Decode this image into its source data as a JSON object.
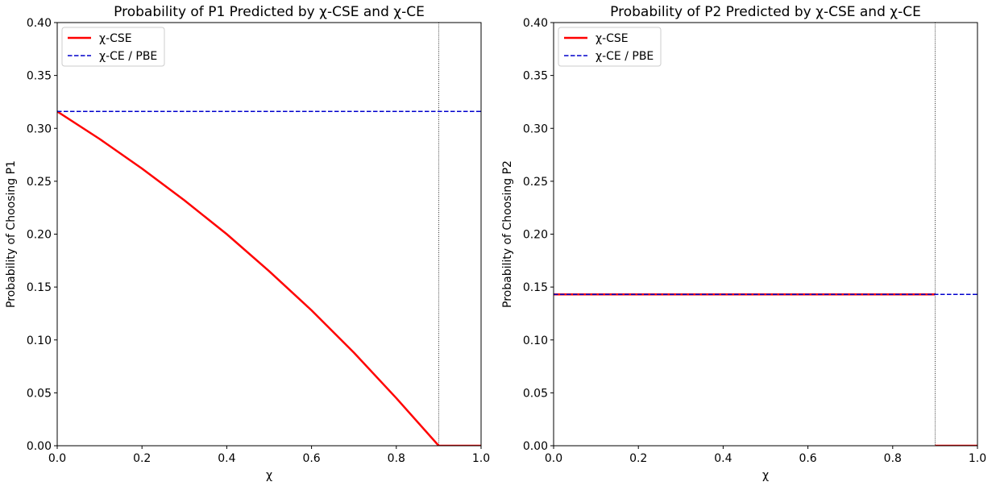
{
  "chart_data": [
    {
      "type": "line",
      "title": "Probability of P1 Predicted by χ-CSE and χ-CE",
      "xlabel": "χ",
      "ylabel": "Probability of Choosing P1",
      "xlim": [
        0.0,
        1.0
      ],
      "ylim": [
        0.0,
        0.4
      ],
      "xticks": [
        "0.0",
        "0.2",
        "0.4",
        "0.6",
        "0.8",
        "1.0"
      ],
      "yticks": [
        "0.00",
        "0.05",
        "0.10",
        "0.15",
        "0.20",
        "0.25",
        "0.30",
        "0.35",
        "0.40"
      ],
      "grid": false,
      "legend": "top-left",
      "vline_x": 0.9,
      "series": [
        {
          "name": "χ-CSE",
          "color": "#ff0000",
          "style": "solid",
          "segments": [
            {
              "x": [
                0.0,
                0.1,
                0.2,
                0.3,
                0.4,
                0.5,
                0.6,
                0.7,
                0.8,
                0.9
              ],
              "y": [
                0.316,
                0.29,
                0.262,
                0.232,
                0.2,
                0.165,
                0.128,
                0.088,
                0.045,
                0.0
              ]
            },
            {
              "x": [
                0.9,
                1.0
              ],
              "y": [
                0.0,
                0.0
              ]
            }
          ]
        },
        {
          "name": "χ-CE / PBE",
          "color": "#0000cc",
          "style": "dashed",
          "segments": [
            {
              "x": [
                0.0,
                1.0
              ],
              "y": [
                0.316,
                0.316
              ]
            }
          ]
        }
      ]
    },
    {
      "type": "line",
      "title": "Probability of P2 Predicted by χ-CSE and χ-CE",
      "xlabel": "χ",
      "ylabel": "Probability of Choosing P2",
      "xlim": [
        0.0,
        1.0
      ],
      "ylim": [
        0.0,
        0.4
      ],
      "xticks": [
        "0.0",
        "0.2",
        "0.4",
        "0.6",
        "0.8",
        "1.0"
      ],
      "yticks": [
        "0.00",
        "0.05",
        "0.10",
        "0.15",
        "0.20",
        "0.25",
        "0.30",
        "0.35",
        "0.40"
      ],
      "grid": false,
      "legend": "top-left",
      "vline_x": 0.9,
      "series": [
        {
          "name": "χ-CSE",
          "color": "#ff0000",
          "style": "solid",
          "segments": [
            {
              "x": [
                0.0,
                0.9
              ],
              "y": [
                0.143,
                0.143
              ]
            },
            {
              "x": [
                0.9,
                1.0
              ],
              "y": [
                0.0,
                0.0
              ]
            }
          ]
        },
        {
          "name": "χ-CE / PBE",
          "color": "#0000cc",
          "style": "dashed",
          "segments": [
            {
              "x": [
                0.0,
                1.0
              ],
              "y": [
                0.143,
                0.143
              ]
            }
          ]
        }
      ]
    }
  ]
}
